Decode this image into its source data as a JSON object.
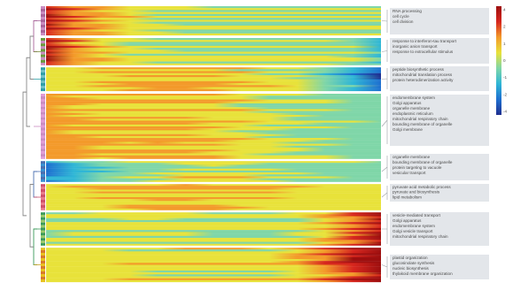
{
  "chart_data": {
    "type": "heatmap",
    "title": "",
    "colormap": [
      "#1f2f8f",
      "#1e6fd0",
      "#2fb6d6",
      "#7fd6a8",
      "#e8e23a",
      "#f39a2a",
      "#d7261e",
      "#9d0f0f"
    ],
    "clusters": [
      {
        "name": "cluster-1",
        "tree_color": "#a8649a",
        "strip_colors": [
          "#c98bc1",
          "#a8649a"
        ],
        "terms": [
          "RNA processing",
          "cell cycle",
          "cell division"
        ]
      },
      {
        "name": "cluster-2",
        "tree_color": "#7a8e3c",
        "strip_colors": [
          "#6a9a3c",
          "#c98bc1"
        ],
        "terms": [
          "response to interferon-tau transport",
          "inorganic anion transport",
          "response to extracellular stimulus"
        ]
      },
      {
        "name": "cluster-3",
        "tree_color": "#2f9fa8",
        "strip_colors": [
          "#2f9fa8",
          "#6fbfc4"
        ],
        "terms": [
          "peptide biosynthetic process",
          "mitochondrial translation process",
          "protein heterodimerization activity"
        ]
      },
      {
        "name": "cluster-4",
        "tree_color": "#c98bc1",
        "strip_colors": [
          "#e09bd6",
          "#c98bc1"
        ],
        "terms": [
          "endomembrane system",
          "Golgi apparatus",
          "organelle membrane",
          "endoplasmic reticulum",
          "mitochondrial respiratory chain",
          "bounding membrane of organelle",
          "Golgi membrane"
        ]
      },
      {
        "name": "cluster-5",
        "tree_color": "#4a6fb0",
        "strip_colors": [
          "#4a6fb0",
          "#3a8fd0"
        ],
        "terms": [
          "organelle membrane",
          "bounding membrane of organelle",
          "protein targeting to vacuole",
          "vesicular transport"
        ]
      },
      {
        "name": "cluster-6",
        "tree_color": "#d0506a",
        "strip_colors": [
          "#d0506a",
          "#e87a8a"
        ],
        "terms": [
          "pyruvate acid metabolic process",
          "pyruvate and biosynthesis",
          "lipid metabolism"
        ]
      },
      {
        "name": "cluster-7",
        "tree_color": "#3a9a5a",
        "strip_colors": [
          "#3a9a5a",
          "#9ac86a"
        ],
        "terms": [
          "vesicle-mediated transport",
          "Golgi apparatus",
          "endomembrane system",
          "Golgi vesicle transport",
          "mitochondrial respiratory chain"
        ]
      },
      {
        "name": "cluster-8",
        "tree_color": "#c8a020",
        "strip_colors": [
          "#e8c020",
          "#d87a2a"
        ],
        "terms": [
          "plastid organization",
          "glucosinolate synthesis",
          "nucleic biosynthesis",
          "thylakoid membrane organization"
        ]
      }
    ],
    "legend": {
      "ticks": [
        "4",
        "2",
        "1",
        "0",
        "-1",
        "-2",
        "-4"
      ]
    }
  }
}
